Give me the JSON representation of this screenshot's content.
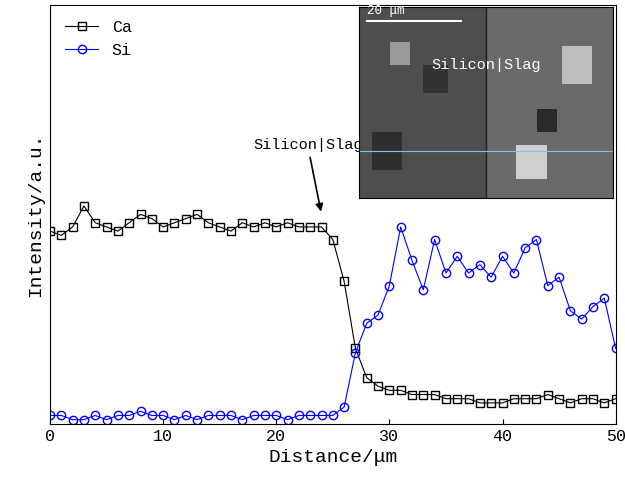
{
  "chart_data": {
    "type": "line",
    "x_label": "Distance/μm",
    "y_label": "Intensity/a.u.",
    "x": [
      0,
      1,
      2,
      3,
      4,
      5,
      6,
      7,
      8,
      9,
      10,
      11,
      12,
      13,
      14,
      15,
      16,
      17,
      18,
      19,
      20,
      21,
      22,
      23,
      24,
      25,
      26,
      27,
      28,
      29,
      30,
      31,
      32,
      33,
      34,
      35,
      36,
      37,
      38,
      39,
      40,
      41,
      42,
      43,
      44,
      45,
      46,
      47,
      48,
      49,
      50
    ],
    "series": [
      {
        "name": "Ca",
        "color": "#000000",
        "marker": "square",
        "values": [
          0.46,
          0.45,
          0.47,
          0.52,
          0.48,
          0.47,
          0.46,
          0.48,
          0.5,
          0.49,
          0.47,
          0.48,
          0.49,
          0.5,
          0.48,
          0.47,
          0.46,
          0.48,
          0.47,
          0.48,
          0.47,
          0.48,
          0.47,
          0.47,
          0.47,
          0.44,
          0.34,
          0.18,
          0.11,
          0.09,
          0.08,
          0.08,
          0.07,
          0.07,
          0.07,
          0.06,
          0.06,
          0.06,
          0.05,
          0.05,
          0.05,
          0.06,
          0.06,
          0.06,
          0.07,
          0.06,
          0.05,
          0.06,
          0.06,
          0.05,
          0.06
        ]
      },
      {
        "name": "Si",
        "color": "#0000ff",
        "marker": "circle",
        "values": [
          0.02,
          0.02,
          0.01,
          0.01,
          0.02,
          0.01,
          0.02,
          0.02,
          0.03,
          0.02,
          0.02,
          0.01,
          0.02,
          0.01,
          0.02,
          0.02,
          0.02,
          0.01,
          0.02,
          0.02,
          0.02,
          0.01,
          0.02,
          0.02,
          0.02,
          0.02,
          0.04,
          0.17,
          0.24,
          0.26,
          0.33,
          0.47,
          0.39,
          0.32,
          0.44,
          0.36,
          0.4,
          0.36,
          0.38,
          0.35,
          0.4,
          0.36,
          0.42,
          0.44,
          0.33,
          0.35,
          0.27,
          0.25,
          0.28,
          0.3,
          0.18
        ]
      }
    ],
    "xlim": [
      0,
      50
    ],
    "xticks": [
      0,
      10,
      20,
      30,
      40,
      50
    ],
    "ylim": [
      0,
      1
    ],
    "yticks": [],
    "tick_labels": "x",
    "legend": "upper left",
    "annotations": [
      {
        "text": "Silicon|Slag",
        "x": 24,
        "y": 0.5
      }
    ],
    "inset": {
      "scale_bar": "20 μm",
      "label": "Silicon|Slag"
    }
  }
}
